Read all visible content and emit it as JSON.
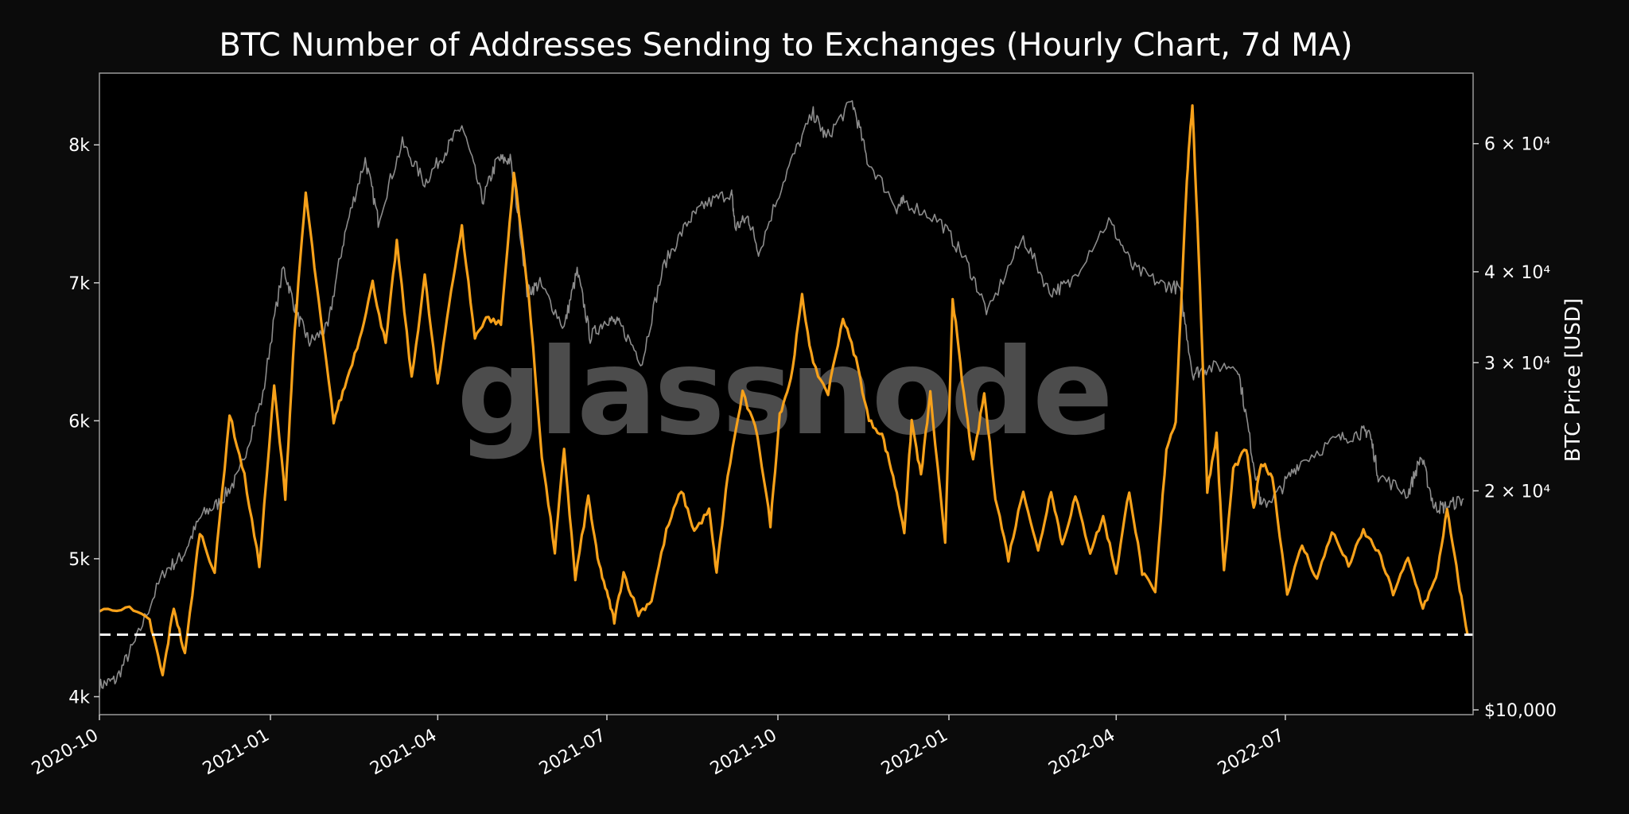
{
  "chart_data": {
    "type": "line",
    "title": "BTC Number of Addresses Sending to Exchanges (Hourly Chart, 7d MA)",
    "watermark": "glassnode",
    "y_left": {
      "ticks": [
        4000,
        5000,
        6000,
        7000,
        8000
      ],
      "tick_labels": [
        "4k",
        "5k",
        "6k",
        "7k",
        "8k"
      ],
      "range": [
        3870,
        8520
      ]
    },
    "y_right": {
      "label": "BTC Price [USD]",
      "scale": "log",
      "range": [
        9850,
        75000
      ],
      "ticks": [
        10000,
        20000,
        30000,
        40000,
        60000
      ],
      "tick_labels": [
        "$10,000",
        "2 × 10⁴",
        "3 × 10⁴",
        "4 × 10⁴",
        "6 × 10⁴"
      ]
    },
    "x_axis": {
      "range": [
        "2020-10-01",
        "2022-10-10"
      ],
      "ticks": [
        "2020-10-01",
        "2021-01-01",
        "2021-04-01",
        "2021-07-01",
        "2021-10-01",
        "2022-01-01",
        "2022-04-01",
        "2022-07-01"
      ],
      "tick_labels": [
        "2020-10",
        "2021-01",
        "2021-04",
        "2021-07",
        "2021-10",
        "2022-01",
        "2022-04",
        "2022-07"
      ]
    },
    "reference_line": {
      "value": 4450,
      "style": "dashed",
      "color": "#ffffff"
    },
    "series": [
      {
        "color": "#f7a11a",
        "axis": "left",
        "x": [
          "2020-10-01",
          "2020-10-15",
          "2020-10-28",
          "2020-11-04",
          "2020-11-10",
          "2020-11-16",
          "2020-11-24",
          "2020-12-02",
          "2020-12-10",
          "2020-12-18",
          "2020-12-26",
          "2021-01-03",
          "2021-01-09",
          "2021-01-14",
          "2021-01-20",
          "2021-01-27",
          "2021-02-04",
          "2021-02-10",
          "2021-02-18",
          "2021-02-25",
          "2021-03-04",
          "2021-03-10",
          "2021-03-18",
          "2021-03-25",
          "2021-04-01",
          "2021-04-07",
          "2021-04-14",
          "2021-04-21",
          "2021-04-27",
          "2021-05-05",
          "2021-05-12",
          "2021-05-20",
          "2021-05-27",
          "2021-06-03",
          "2021-06-08",
          "2021-06-14",
          "2021-06-21",
          "2021-06-26",
          "2021-07-01",
          "2021-07-05",
          "2021-07-10",
          "2021-07-18",
          "2021-07-25",
          "2021-08-02",
          "2021-08-10",
          "2021-08-17",
          "2021-08-25",
          "2021-08-29",
          "2021-09-04",
          "2021-09-12",
          "2021-09-20",
          "2021-09-27",
          "2021-10-02",
          "2021-10-08",
          "2021-10-14",
          "2021-10-20",
          "2021-10-28",
          "2021-11-05",
          "2021-11-12",
          "2021-11-19",
          "2021-11-26",
          "2021-12-02",
          "2021-12-08",
          "2021-12-12",
          "2021-12-17",
          "2021-12-22",
          "2021-12-30",
          "2022-01-03",
          "2022-01-08",
          "2022-01-14",
          "2022-01-20",
          "2022-01-26",
          "2022-02-02",
          "2022-02-10",
          "2022-02-18",
          "2022-02-25",
          "2022-03-03",
          "2022-03-10",
          "2022-03-18",
          "2022-03-25",
          "2022-04-01",
          "2022-04-08",
          "2022-04-15",
          "2022-04-22",
          "2022-04-28",
          "2022-05-03",
          "2022-05-09",
          "2022-05-12",
          "2022-05-16",
          "2022-05-20",
          "2022-05-25",
          "2022-05-29",
          "2022-06-03",
          "2022-06-10",
          "2022-06-14",
          "2022-06-18",
          "2022-06-24",
          "2022-07-02",
          "2022-07-10",
          "2022-07-18",
          "2022-07-26",
          "2022-08-04",
          "2022-08-12",
          "2022-08-20",
          "2022-08-28",
          "2022-09-05",
          "2022-09-13",
          "2022-09-20",
          "2022-09-26",
          "2022-10-02",
          "2022-10-07"
        ],
        "values": [
          4620,
          4650,
          4550,
          4150,
          4650,
          4300,
          5200,
          4900,
          6050,
          5600,
          4950,
          6250,
          5450,
          6650,
          7650,
          6850,
          6000,
          6250,
          6600,
          7000,
          6550,
          7300,
          6300,
          7050,
          6250,
          6850,
          7400,
          6600,
          6750,
          6700,
          7800,
          6900,
          5750,
          5050,
          5800,
          4850,
          5450,
          5000,
          4750,
          4550,
          4900,
          4600,
          4700,
          5200,
          5500,
          5200,
          5350,
          4900,
          5600,
          6200,
          5900,
          5250,
          6050,
          6300,
          6900,
          6400,
          6200,
          6750,
          6450,
          6000,
          5900,
          5600,
          5200,
          6000,
          5600,
          6200,
          5100,
          6900,
          6300,
          5700,
          6200,
          5450,
          5000,
          5500,
          5050,
          5500,
          5100,
          5450,
          5050,
          5300,
          4900,
          5500,
          4900,
          4750,
          5800,
          6000,
          7750,
          8300,
          7000,
          5500,
          5900,
          4900,
          5650,
          5800,
          5350,
          5700,
          5600,
          4750,
          5100,
          4850,
          5200,
          4950,
          5200,
          5050,
          4750,
          5000,
          4650,
          4850,
          5350,
          4850,
          4450
        ]
      },
      {
        "color": "#8c8c8c",
        "axis": "right",
        "x": [
          "2020-10-01",
          "2020-10-10",
          "2020-10-21",
          "2020-11-05",
          "2020-11-15",
          "2020-11-25",
          "2020-12-05",
          "2020-12-15",
          "2020-12-28",
          "2021-01-08",
          "2021-01-15",
          "2021-01-22",
          "2021-02-01",
          "2021-02-10",
          "2021-02-21",
          "2021-02-28",
          "2021-03-13",
          "2021-03-25",
          "2021-04-05",
          "2021-04-14",
          "2021-04-25",
          "2021-05-03",
          "2021-05-10",
          "2021-05-19",
          "2021-05-26",
          "2021-06-08",
          "2021-06-15",
          "2021-06-22",
          "2021-07-01",
          "2021-07-08",
          "2021-07-20",
          "2021-08-01",
          "2021-08-14",
          "2021-08-23",
          "2021-09-06",
          "2021-09-08",
          "2021-09-15",
          "2021-09-21",
          "2021-10-06",
          "2021-10-20",
          "2021-10-27",
          "2021-11-10",
          "2021-11-18",
          "2021-12-04",
          "2021-12-08",
          "2021-12-27",
          "2022-01-10",
          "2022-01-22",
          "2022-02-10",
          "2022-02-24",
          "2022-03-07",
          "2022-03-28",
          "2022-04-10",
          "2022-04-25",
          "2022-05-05",
          "2022-05-12",
          "2022-05-20",
          "2022-06-05",
          "2022-06-13",
          "2022-06-18",
          "2022-06-28",
          "2022-07-08",
          "2022-07-28",
          "2022-08-10",
          "2022-08-15",
          "2022-08-20",
          "2022-09-05",
          "2022-09-12",
          "2022-09-19",
          "2022-09-25",
          "2022-10-05"
        ],
        "values": [
          10800,
          11000,
          12500,
          15500,
          16300,
          18500,
          19300,
          21000,
          27000,
          40500,
          35000,
          32000,
          33500,
          45000,
          57000,
          47000,
          60000,
          53000,
          58500,
          63500,
          50000,
          57000,
          57000,
          37500,
          38500,
          33500,
          40000,
          32500,
          34500,
          33800,
          30000,
          41000,
          47000,
          49500,
          51500,
          46000,
          47500,
          42500,
          55000,
          66000,
          61000,
          68500,
          57000,
          49000,
          50000,
          47000,
          41500,
          35000,
          44500,
          37500,
          38500,
          47000,
          40500,
          38500,
          38000,
          29000,
          29500,
          29800,
          22500,
          19000,
          20000,
          21800,
          23500,
          24000,
          24200,
          21000,
          19800,
          22300,
          19000,
          19000,
          19500
        ]
      }
    ]
  }
}
